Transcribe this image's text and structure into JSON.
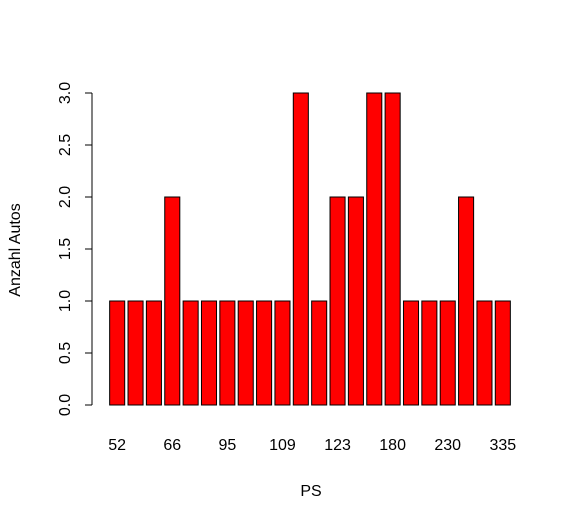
{
  "chart_data": {
    "type": "bar",
    "categories": [
      "52",
      "",
      "",
      "66",
      "",
      "",
      "95",
      "",
      "",
      "109",
      "",
      "",
      "123",
      "",
      "",
      "180",
      "",
      "",
      "230",
      "",
      "",
      "335"
    ],
    "category_labels_shown": [
      "52",
      "66",
      "95",
      "109",
      "123",
      "180",
      "230",
      "335"
    ],
    "values": [
      1,
      1,
      1,
      2,
      1,
      1,
      1,
      1,
      1,
      1,
      3,
      1,
      2,
      2,
      3,
      3,
      1,
      1,
      1,
      2,
      1,
      1
    ],
    "xlabel": "PS",
    "ylabel": "Anzahl Autos",
    "ylim": [
      0,
      3
    ],
    "yticks": [
      "0.0",
      "0.5",
      "1.0",
      "1.5",
      "2.0",
      "2.5",
      "3.0"
    ],
    "bar_color": "#ff0000",
    "bar_border_color": "#000000",
    "grid": false
  }
}
